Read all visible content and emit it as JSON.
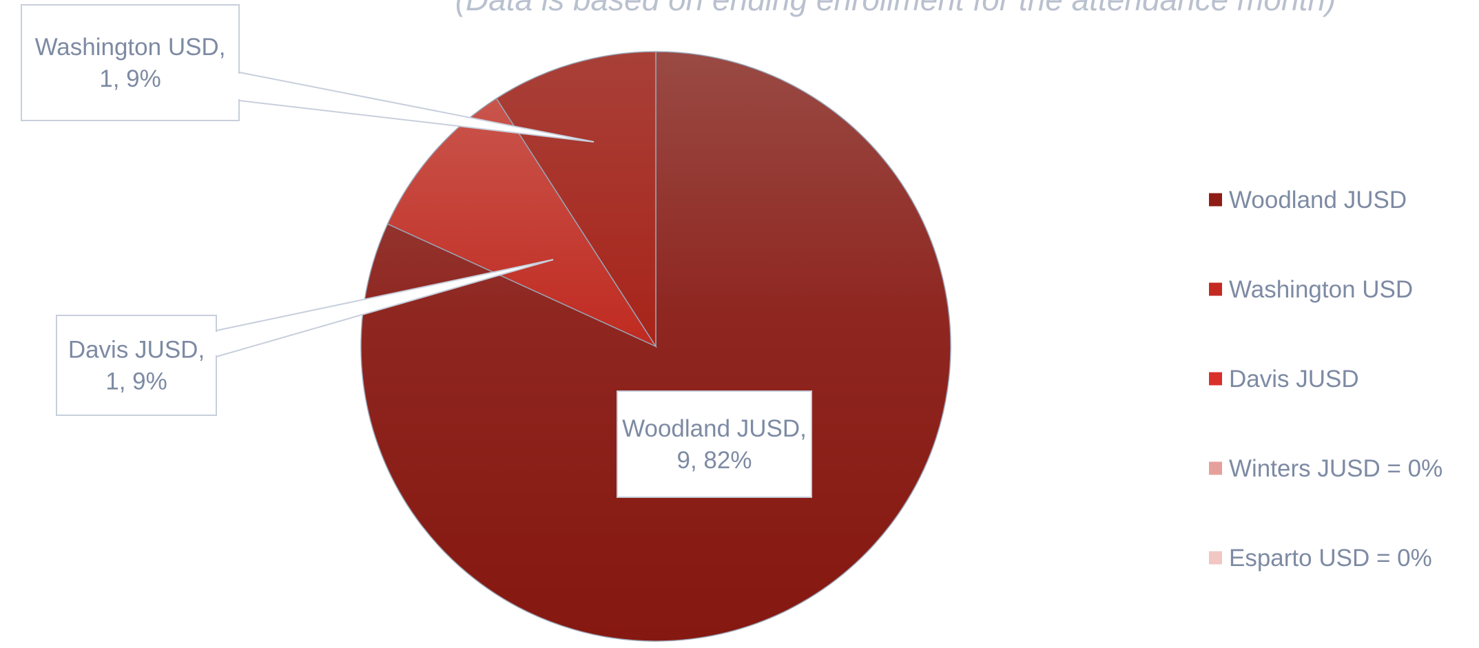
{
  "subtitle": "(Data is based on ending enrollment  for the attendance month)",
  "chart_data": {
    "type": "pie",
    "title": "",
    "slices": [
      {
        "name": "Woodland JUSD",
        "value": 9,
        "percent": 82,
        "label": "Woodland JUSD,\n9, 82%",
        "color": "#a83228"
      },
      {
        "name": "Washington USD",
        "value": 1,
        "percent": 9,
        "label": "Washington USD,\n1, 9%",
        "color": "#c63a2f"
      },
      {
        "name": "Davis JUSD",
        "value": 1,
        "percent": 9,
        "label": "Davis JUSD,\n1, 9%",
        "color": "#b02a20"
      },
      {
        "name": "Winters JUSD",
        "value": 0,
        "percent": 0,
        "label": "",
        "color": "#e8a8a3"
      },
      {
        "name": "Esparto USD",
        "value": 0,
        "percent": 0,
        "label": "",
        "color": "#f2cdc9"
      }
    ],
    "legend": {
      "position": "right",
      "entries": [
        {
          "label": "Woodland JUSD",
          "color": "#8e1d16"
        },
        {
          "label": "Washington USD",
          "color": "#c42a22"
        },
        {
          "label": "Davis JUSD",
          "color": "#d9302a"
        },
        {
          "label": "Winters JUSD = 0%",
          "color": "#e6a09c"
        },
        {
          "label": "Esparto USD = 0%",
          "color": "#f1c6c3"
        }
      ]
    }
  }
}
